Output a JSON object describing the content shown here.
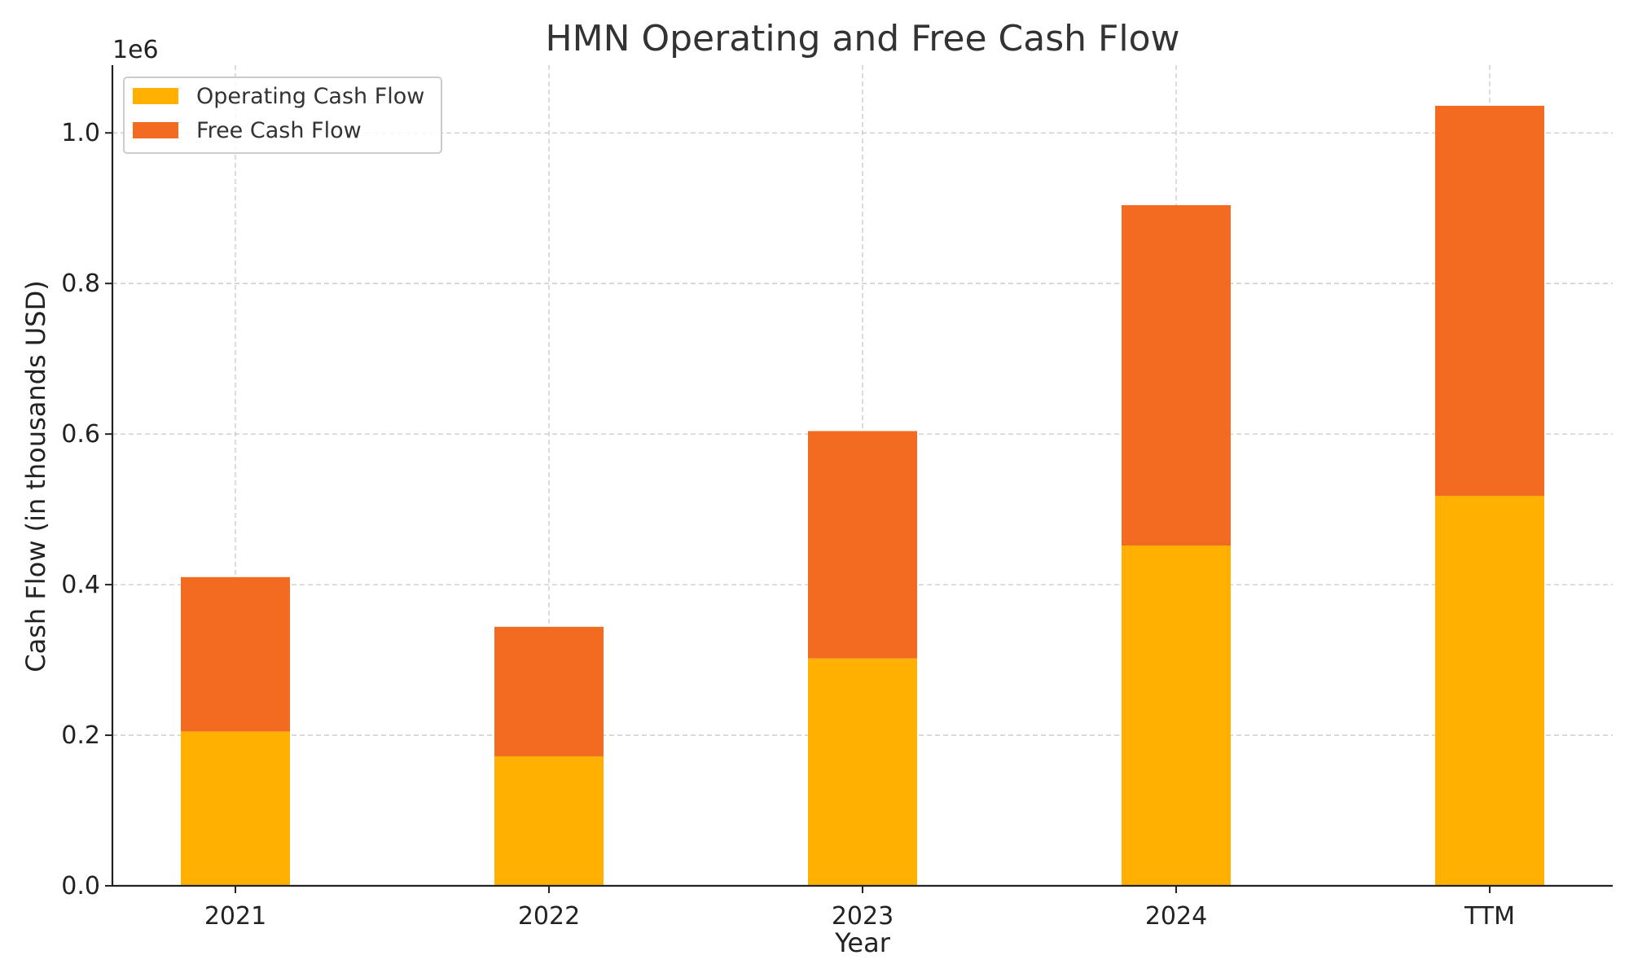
{
  "chart_data": {
    "type": "bar",
    "stacked": true,
    "title": "HMN Operating and Free Cash Flow",
    "xlabel": "Year",
    "ylabel": "Cash Flow (in thousands USD)",
    "y_offset_label": "1e6",
    "categories": [
      "2021",
      "2022",
      "2023",
      "2024",
      "TTM"
    ],
    "series": [
      {
        "name": "Operating Cash Flow",
        "color": "#FFB000",
        "values": [
          205000,
          172000,
          302000,
          452000,
          518000
        ]
      },
      {
        "name": "Free Cash Flow",
        "color": "#F26B21",
        "values": [
          205000,
          172000,
          302000,
          452000,
          518000
        ]
      }
    ],
    "ylim": [
      0,
      1090000
    ],
    "yticks": [
      0,
      200000,
      400000,
      600000,
      800000,
      1000000
    ],
    "ytick_labels": [
      "0.0",
      "0.2",
      "0.4",
      "0.6",
      "0.8",
      "1.0"
    ],
    "grid": true,
    "legend_position": "top-left"
  }
}
